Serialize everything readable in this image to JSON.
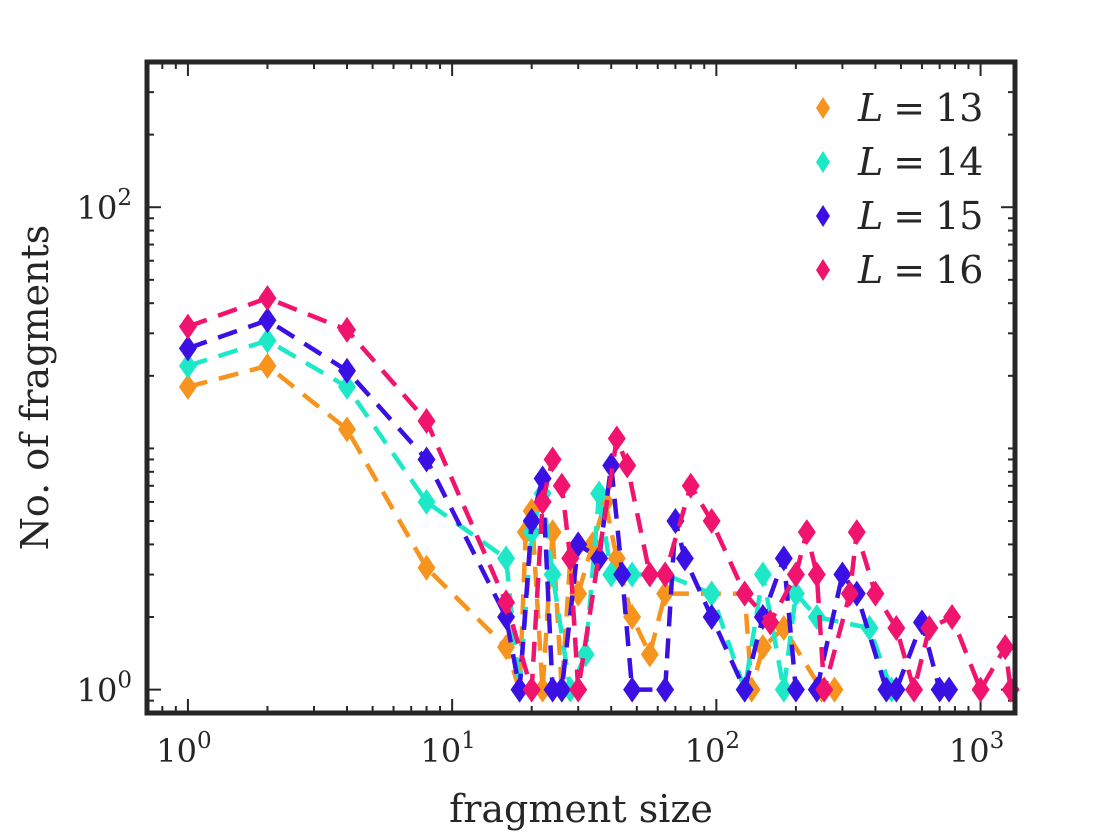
{
  "chart_data": {
    "type": "line",
    "title": "",
    "xlabel": "fragment size",
    "ylabel": "No. of fragments",
    "xscale": "log",
    "yscale": "log",
    "xlim": [
      0.7,
      1350
    ],
    "ylim": [
      0.8,
      400
    ],
    "xticks": [
      {
        "value": 1,
        "base": "10",
        "exp": "0"
      },
      {
        "value": 10,
        "base": "10",
        "exp": "1"
      },
      {
        "value": 100,
        "base": "10",
        "exp": "2"
      },
      {
        "value": 1000,
        "base": "10",
        "exp": "3"
      }
    ],
    "yticks": [
      {
        "value": 1,
        "base": "10",
        "exp": "0"
      },
      {
        "value": 100,
        "base": "10",
        "exp": "2"
      }
    ],
    "grid": false,
    "legend_position": "top-right",
    "series": [
      {
        "name": "L = 13",
        "legend_var": "L",
        "legend_eq": "=",
        "legend_num": "13",
        "color": "#f7941d",
        "points": [
          [
            1,
            18
          ],
          [
            2,
            22
          ],
          [
            4,
            12
          ],
          [
            8,
            3.2
          ],
          [
            16,
            1.5
          ],
          [
            18,
            1
          ],
          [
            19,
            4.5
          ],
          [
            20,
            5.5
          ],
          [
            22,
            1
          ],
          [
            24,
            4.5
          ],
          [
            26,
            1
          ],
          [
            28,
            3.5
          ],
          [
            30,
            2.5
          ],
          [
            34,
            4
          ],
          [
            38,
            6
          ],
          [
            42,
            3.5
          ],
          [
            48,
            2
          ],
          [
            56,
            1.4
          ],
          [
            64,
            2.5
          ],
          [
            96,
            2.5
          ],
          [
            128,
            2.5
          ],
          [
            136,
            1
          ],
          [
            150,
            1.5
          ],
          [
            180,
            1.8
          ],
          [
            250,
            1
          ],
          [
            280,
            1
          ]
        ]
      },
      {
        "name": "L = 14",
        "legend_var": "L",
        "legend_eq": "=",
        "legend_num": "14",
        "color": "#1de9c8",
        "points": [
          [
            1,
            22
          ],
          [
            2,
            28
          ],
          [
            4,
            18
          ],
          [
            8,
            6
          ],
          [
            16,
            3.5
          ],
          [
            18,
            1
          ],
          [
            20,
            4.5
          ],
          [
            22,
            6.5
          ],
          [
            24,
            3
          ],
          [
            28,
            1
          ],
          [
            32,
            1.4
          ],
          [
            36,
            6.5
          ],
          [
            40,
            3
          ],
          [
            48,
            3
          ],
          [
            64,
            3
          ],
          [
            96,
            2.5
          ],
          [
            128,
            1
          ],
          [
            150,
            3
          ],
          [
            180,
            1
          ],
          [
            200,
            2.5
          ],
          [
            240,
            2
          ],
          [
            380,
            1.8
          ],
          [
            460,
            1
          ]
        ]
      },
      {
        "name": "L = 15",
        "legend_var": "L",
        "legend_eq": "=",
        "legend_num": "15",
        "color": "#3a10e5",
        "points": [
          [
            1,
            26
          ],
          [
            2,
            34
          ],
          [
            4,
            21
          ],
          [
            8,
            9
          ],
          [
            16,
            2
          ],
          [
            18,
            1
          ],
          [
            20,
            5
          ],
          [
            22,
            7.5
          ],
          [
            24,
            1
          ],
          [
            26,
            1
          ],
          [
            30,
            4
          ],
          [
            36,
            3.5
          ],
          [
            40,
            8.5
          ],
          [
            44,
            3
          ],
          [
            48,
            1
          ],
          [
            64,
            1
          ],
          [
            70,
            5
          ],
          [
            76,
            3.5
          ],
          [
            96,
            2
          ],
          [
            128,
            1
          ],
          [
            150,
            2
          ],
          [
            180,
            3.5
          ],
          [
            200,
            1
          ],
          [
            240,
            1
          ],
          [
            300,
            3
          ],
          [
            340,
            2.5
          ],
          [
            440,
            1
          ],
          [
            480,
            1
          ],
          [
            600,
            1.9
          ],
          [
            700,
            1
          ],
          [
            760,
            1
          ]
        ]
      },
      {
        "name": "L = 16",
        "legend_var": "L",
        "legend_eq": "=",
        "legend_num": "16",
        "color": "#f0146e",
        "points": [
          [
            1,
            32
          ],
          [
            2,
            42
          ],
          [
            4,
            31
          ],
          [
            8,
            13
          ],
          [
            16,
            2.3
          ],
          [
            20,
            1
          ],
          [
            22,
            6
          ],
          [
            24,
            9
          ],
          [
            26,
            7
          ],
          [
            28,
            3.5
          ],
          [
            30,
            1
          ],
          [
            42,
            11
          ],
          [
            46,
            8.5
          ],
          [
            56,
            3
          ],
          [
            64,
            3
          ],
          [
            80,
            7
          ],
          [
            96,
            5
          ],
          [
            128,
            2.5
          ],
          [
            160,
            1.9
          ],
          [
            200,
            3
          ],
          [
            220,
            4.5
          ],
          [
            240,
            3
          ],
          [
            256,
            1
          ],
          [
            320,
            2.5
          ],
          [
            340,
            4.5
          ],
          [
            400,
            2.5
          ],
          [
            480,
            1.8
          ],
          [
            560,
            1
          ],
          [
            640,
            1.8
          ],
          [
            780,
            2
          ],
          [
            1000,
            1
          ],
          [
            1240,
            1.5
          ],
          [
            1300,
            1
          ]
        ]
      }
    ]
  }
}
